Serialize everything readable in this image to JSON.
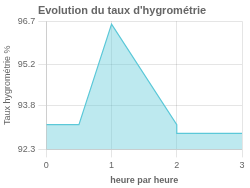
{
  "chart_data": {
    "type": "area",
    "title": "Evolution du taux d'hygrométrie",
    "xlabel": "heure par heure",
    "ylabel": "Taux hygrométrie %",
    "x": [
      0,
      0.5,
      1,
      2,
      2,
      3
    ],
    "values": [
      93.15,
      93.15,
      96.6,
      93.15,
      92.85,
      92.85
    ],
    "color": "#5bc8d8",
    "xlim": [
      0,
      3
    ],
    "ylim": [
      92.3,
      96.7
    ],
    "xticks": [
      0,
      1,
      2,
      3
    ],
    "yticks": [
      92.3,
      93.8,
      95.2,
      96.7
    ],
    "grid": true
  }
}
